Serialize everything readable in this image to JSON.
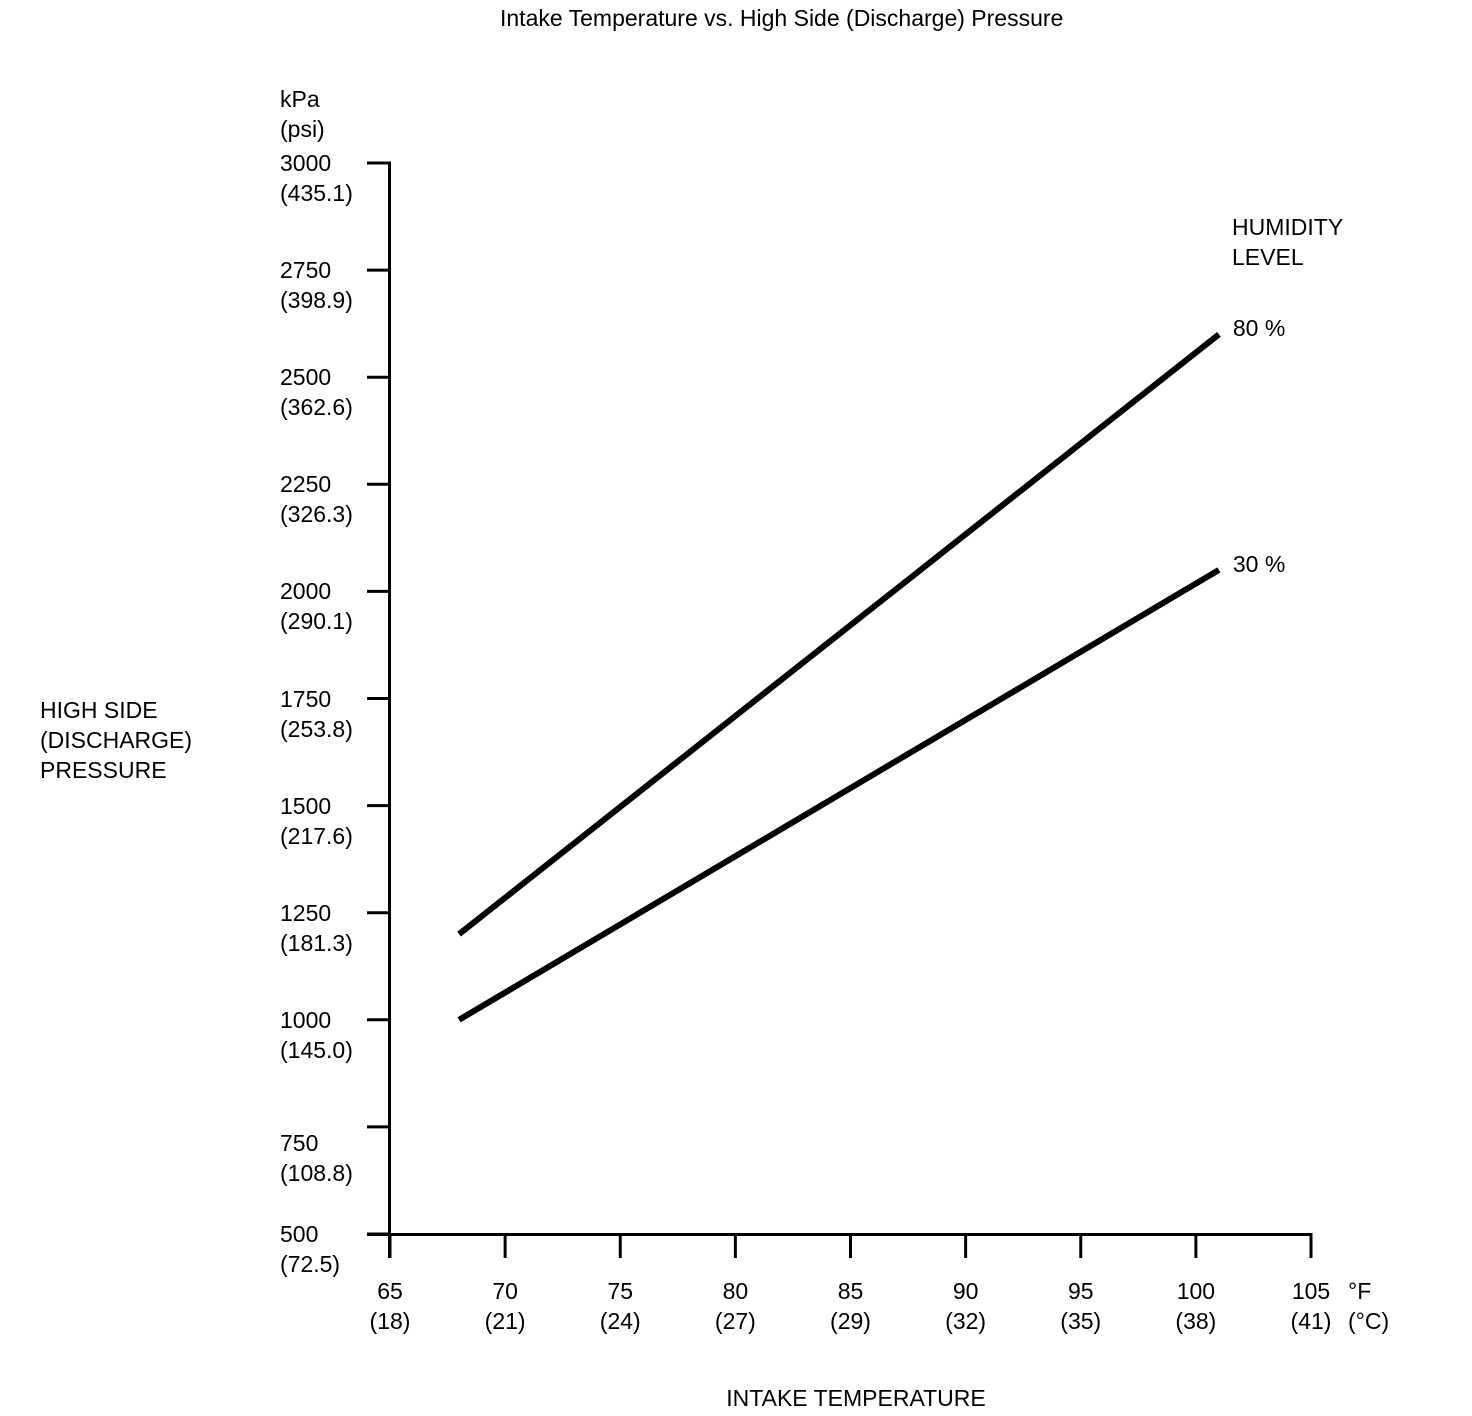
{
  "chart_data": {
    "type": "line",
    "title": "Intake Temperature vs. High Side (Discharge) Pressure",
    "xlabel": "INTAKE TEMPERATURE",
    "ylabel": "HIGH SIDE\n(DISCHARGE)\nPRESSURE",
    "grid": false,
    "legend": {
      "title": "HUMIDITY\nLEVEL",
      "position": "right-of-line-ends"
    },
    "x_axis": {
      "unit_label": "°F\n(°C)",
      "range_f": [
        65,
        105
      ],
      "ticks": [
        {
          "f": 65,
          "c": 18
        },
        {
          "f": 70,
          "c": 21
        },
        {
          "f": 75,
          "c": 24
        },
        {
          "f": 80,
          "c": 27
        },
        {
          "f": 85,
          "c": 29
        },
        {
          "f": 90,
          "c": 32
        },
        {
          "f": 95,
          "c": 35
        },
        {
          "f": 100,
          "c": 38
        },
        {
          "f": 105,
          "c": 41
        }
      ]
    },
    "y_axis": {
      "unit_label": "kPa\n(psi)",
      "range_kpa": [
        500,
        3000
      ],
      "ticks": [
        {
          "kpa": 3000,
          "psi": 435.1
        },
        {
          "kpa": 2750,
          "psi": 398.9
        },
        {
          "kpa": 2500,
          "psi": 362.6
        },
        {
          "kpa": 2250,
          "psi": 326.3
        },
        {
          "kpa": 2000,
          "psi": 290.1
        },
        {
          "kpa": 1750,
          "psi": 253.8
        },
        {
          "kpa": 1500,
          "psi": 217.6
        },
        {
          "kpa": 1250,
          "psi": 181.3
        },
        {
          "kpa": 1000,
          "psi": 145.0
        },
        {
          "kpa": 750,
          "psi": 108.8
        },
        {
          "kpa": 500,
          "psi": 72.5
        }
      ]
    },
    "series": [
      {
        "name": "80 %",
        "points": [
          {
            "f": 68,
            "kpa": 1200
          },
          {
            "f": 101,
            "kpa": 2600
          }
        ]
      },
      {
        "name": "30 %",
        "points": [
          {
            "f": 68,
            "kpa": 1000
          },
          {
            "f": 101,
            "kpa": 2050
          }
        ]
      }
    ],
    "colors": {
      "line": "#000000",
      "text": "#000000",
      "background": "#ffffff"
    }
  }
}
